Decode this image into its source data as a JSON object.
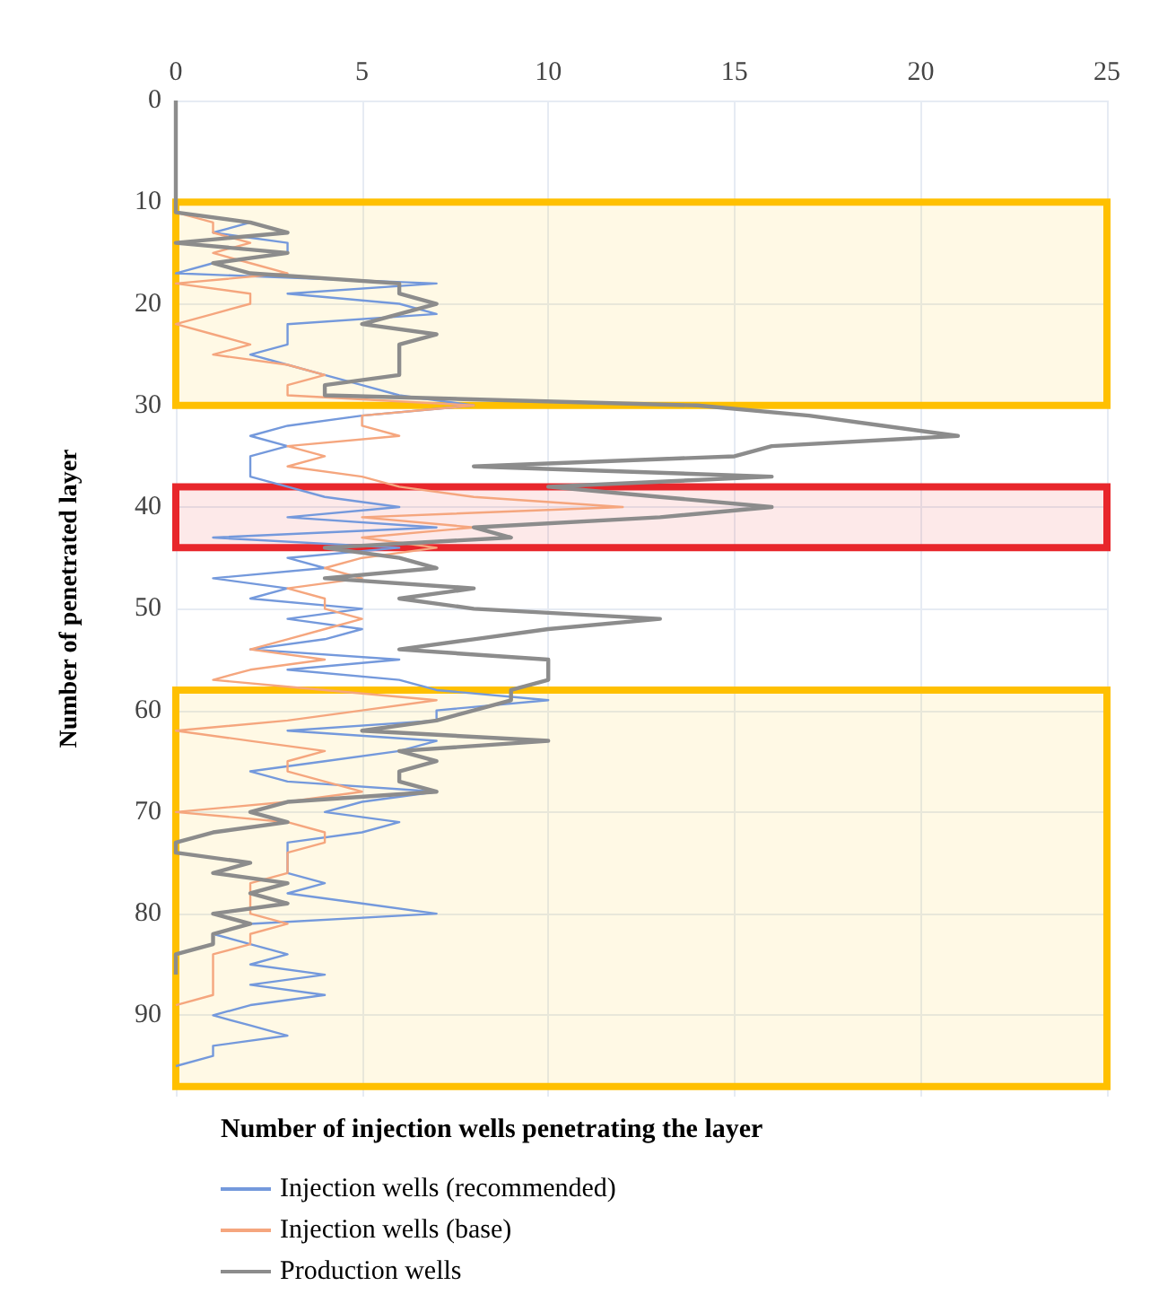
{
  "chart_data": {
    "type": "line",
    "orientation": "horizontal",
    "xlabel": "Number of injection wells penetrating the layer",
    "ylabel": "Number of penetrated layer",
    "xlim": [
      0,
      25
    ],
    "xticks": [
      0,
      5,
      10,
      15,
      20,
      25
    ],
    "ylim": [
      98,
      0
    ],
    "yticks": [
      0,
      10,
      20,
      30,
      40,
      50,
      60,
      70,
      80,
      90
    ],
    "grid": true,
    "legend": "bottom",
    "series": [
      {
        "name": "Injection wells (recommended)",
        "color": "#7499dc",
        "x": [
          11,
          12,
          13,
          14,
          15,
          16,
          17,
          18,
          19,
          20,
          21,
          22,
          23,
          24,
          25,
          26,
          27,
          28,
          29,
          30,
          31,
          32,
          33,
          34,
          35,
          36,
          37,
          38,
          39,
          40,
          41,
          42,
          43,
          44,
          45,
          46,
          47,
          48,
          49,
          50,
          51,
          52,
          53,
          54,
          55,
          56,
          57,
          58,
          59,
          60,
          61,
          62,
          63,
          64,
          65,
          66,
          67,
          68,
          69,
          70,
          71,
          72,
          73,
          74,
          75,
          76,
          77,
          78,
          79,
          80,
          81,
          82,
          83,
          84,
          85,
          86,
          87,
          88,
          89,
          90,
          91,
          92,
          93,
          94,
          95
        ],
        "values": [
          0,
          2,
          1,
          3,
          3,
          1,
          0,
          7,
          3,
          6,
          7,
          3,
          3,
          3,
          2,
          3,
          4,
          5,
          6,
          8,
          5,
          3,
          2,
          3,
          2,
          2,
          2,
          3,
          4,
          6,
          3,
          7,
          1,
          6,
          3,
          4,
          1,
          3,
          2,
          5,
          3,
          5,
          4,
          2,
          6,
          3,
          6,
          7,
          10,
          7,
          7,
          3,
          7,
          6,
          4,
          2,
          3,
          7,
          5,
          4,
          6,
          5,
          3,
          3,
          3,
          3,
          4,
          3,
          5,
          7,
          2,
          1,
          2,
          3,
          2,
          4,
          2,
          4,
          2,
          1,
          2,
          3,
          1,
          1,
          0
        ]
      },
      {
        "name": "Injection wells (base)",
        "color": "#f5a67e",
        "x": [
          11,
          12,
          13,
          14,
          15,
          16,
          17,
          18,
          19,
          20,
          21,
          22,
          23,
          24,
          25,
          26,
          27,
          28,
          29,
          30,
          31,
          32,
          33,
          34,
          35,
          36,
          37,
          38,
          39,
          40,
          41,
          42,
          43,
          44,
          45,
          46,
          47,
          48,
          49,
          50,
          51,
          52,
          53,
          54,
          55,
          56,
          57,
          58,
          59,
          60,
          61,
          62,
          63,
          64,
          65,
          66,
          67,
          68,
          69,
          70,
          71,
          72,
          73,
          74,
          75,
          76,
          77,
          78,
          79,
          80,
          81,
          82,
          83,
          84,
          85,
          86,
          87,
          88,
          89
        ],
        "values": [
          0,
          1,
          1,
          2,
          1,
          2,
          3,
          0,
          2,
          2,
          1,
          0,
          1,
          2,
          1,
          3,
          4,
          3,
          3,
          8,
          5,
          5,
          6,
          3,
          4,
          3,
          5,
          6,
          8,
          12,
          5,
          8,
          5,
          7,
          5,
          4,
          5,
          3,
          4,
          4,
          5,
          4,
          3,
          2,
          4,
          2,
          1,
          4,
          7,
          5,
          3,
          0,
          2,
          4,
          3,
          3,
          4,
          5,
          3,
          0,
          3,
          4,
          4,
          3,
          3,
          3,
          2,
          2,
          2,
          2,
          3,
          2,
          2,
          1,
          1,
          1,
          1,
          1,
          0
        ]
      },
      {
        "name": "Production wells",
        "color": "#8c8c8c",
        "x": [
          0,
          11,
          12,
          13,
          14,
          15,
          16,
          17,
          18,
          19,
          20,
          21,
          22,
          23,
          24,
          25,
          26,
          27,
          28,
          29,
          30,
          31,
          32,
          33,
          34,
          35,
          36,
          37,
          38,
          39,
          40,
          41,
          42,
          43,
          44,
          45,
          46,
          47,
          48,
          49,
          50,
          51,
          52,
          53,
          54,
          55,
          56,
          57,
          58,
          59,
          60,
          61,
          62,
          63,
          64,
          65,
          66,
          67,
          68,
          69,
          70,
          71,
          72,
          73,
          74,
          75,
          76,
          77,
          78,
          79,
          80,
          81,
          82,
          83,
          84,
          85,
          86
        ],
        "values": [
          0,
          0,
          2,
          3,
          0,
          3,
          1,
          2,
          6,
          6,
          7,
          6,
          5,
          7,
          6,
          6,
          6,
          6,
          4,
          4,
          14,
          17,
          19,
          21,
          16,
          15,
          8,
          16,
          10,
          13,
          16,
          13,
          8,
          9,
          4,
          6,
          7,
          4,
          8,
          6,
          8,
          13,
          10,
          8,
          6,
          10,
          10,
          10,
          9,
          9,
          8,
          7,
          5,
          10,
          6,
          7,
          6,
          6,
          7,
          3,
          2,
          3,
          1,
          0,
          0,
          2,
          1,
          3,
          2,
          3,
          1,
          2,
          1,
          1,
          0,
          0,
          0
        ]
      }
    ],
    "bands": [
      {
        "axis": "y",
        "from": 10,
        "to": 30,
        "color": "#ffc000"
      },
      {
        "axis": "y",
        "from": 38,
        "to": 44,
        "color": "#e8262b"
      },
      {
        "axis": "y",
        "from": 58,
        "to": 97,
        "color": "#ffc000"
      }
    ]
  }
}
